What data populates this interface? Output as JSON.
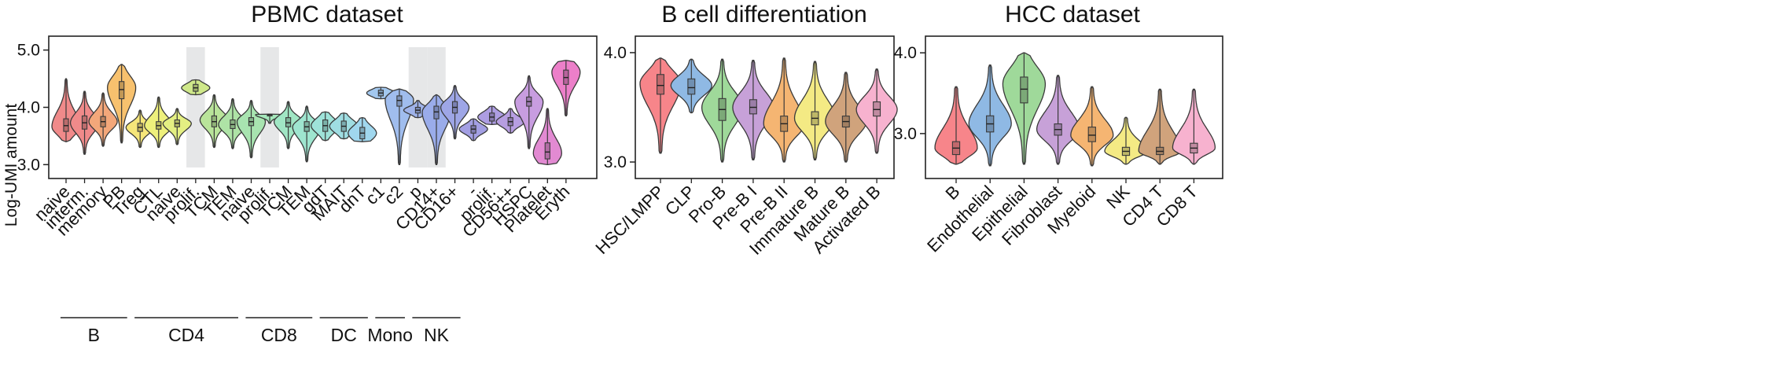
{
  "ylabel": "Log-UMI amount",
  "chart_data": [
    {
      "type": "violin",
      "title": "PBMC dataset",
      "ylabel": "Log-UMI amount",
      "yticks": [
        3.0,
        4.0,
        5.0
      ],
      "ylim": [
        2.95,
        5.05
      ],
      "shaded_categories": [
        "CD4 prolif.",
        "CD8 prolif.",
        "NK -",
        "NK prolif."
      ],
      "groups": [
        {
          "label": "B",
          "members": [
            "naive",
            "interm.",
            "memory",
            "PB"
          ]
        },
        {
          "label": "CD4",
          "members": [
            "Treg",
            "CTL",
            "naive",
            "prolif.",
            "TCM",
            "TEM"
          ]
        },
        {
          "label": "CD8",
          "members": [
            "naive",
            "prolif.",
            "TCM",
            "TEM"
          ]
        },
        {
          "label": "DC",
          "members": [
            "c1",
            "c2",
            "p"
          ]
        },
        {
          "label": "Mono",
          "members": [
            "CD14+",
            "CD16+"
          ]
        },
        {
          "label": "NK",
          "members": [
            "-",
            "prolif.",
            "CD56++"
          ]
        }
      ],
      "categories": [
        {
          "label": "naive",
          "median": 3.68,
          "q1": 3.58,
          "q3": 3.8,
          "min": 3.4,
          "max": 4.5,
          "mode": 3.66,
          "color": "#f08a8a"
        },
        {
          "label": "interm.",
          "median": 3.73,
          "q1": 3.62,
          "q3": 3.85,
          "min": 3.18,
          "max": 4.28,
          "mode": 3.73,
          "color": "#f08a8a"
        },
        {
          "label": "memory",
          "median": 3.75,
          "q1": 3.66,
          "q3": 3.84,
          "min": 3.32,
          "max": 4.25,
          "mode": 3.75,
          "color": "#f3a77a"
        },
        {
          "label": "PB",
          "median": 4.31,
          "q1": 4.15,
          "q3": 4.45,
          "min": 3.38,
          "max": 4.75,
          "mode": 4.35,
          "color": "#f7c16e"
        },
        {
          "label": "Treg",
          "median": 3.65,
          "q1": 3.58,
          "q3": 3.72,
          "min": 3.3,
          "max": 3.95,
          "mode": 3.65,
          "color": "#f6e67a"
        },
        {
          "label": "CTL",
          "median": 3.68,
          "q1": 3.62,
          "q3": 3.75,
          "min": 3.3,
          "max": 4.18,
          "mode": 3.68,
          "color": "#eef07c"
        },
        {
          "label": "naive",
          "median": 3.72,
          "q1": 3.66,
          "q3": 3.78,
          "min": 3.35,
          "max": 3.98,
          "mode": 3.72,
          "color": "#e4ef82"
        },
        {
          "label": "prolif.",
          "median": 4.34,
          "q1": 4.28,
          "q3": 4.4,
          "min": 4.22,
          "max": 4.48,
          "mode": 4.34,
          "color": "#cfe88a"
        },
        {
          "label": "TCM",
          "median": 3.75,
          "q1": 3.66,
          "q3": 3.85,
          "min": 3.3,
          "max": 4.22,
          "mode": 3.78,
          "color": "#b9e49a"
        },
        {
          "label": "TEM",
          "median": 3.7,
          "q1": 3.63,
          "q3": 3.78,
          "min": 3.28,
          "max": 4.15,
          "mode": 3.7,
          "color": "#aee3a6"
        },
        {
          "label": "naive",
          "median": 3.75,
          "q1": 3.68,
          "q3": 3.82,
          "min": 3.12,
          "max": 4.12,
          "mode": 3.75,
          "color": "#a8e4b0"
        },
        {
          "label": "prolif.",
          "median": 3.87,
          "q1": 3.85,
          "q3": 3.88,
          "min": 3.72,
          "max": 3.88,
          "mode": 3.87,
          "color": "#a4e6ba"
        },
        {
          "label": "TCM",
          "median": 3.73,
          "q1": 3.66,
          "q3": 3.82,
          "min": 3.28,
          "max": 4.1,
          "mode": 3.75,
          "color": "#a0e6c4"
        },
        {
          "label": "TEM",
          "median": 3.66,
          "q1": 3.58,
          "q3": 3.75,
          "min": 3.05,
          "max": 4.02,
          "mode": 3.66,
          "color": "#9ee5cf"
        },
        {
          "label": "gdT",
          "median": 3.68,
          "q1": 3.58,
          "q3": 3.78,
          "min": 3.42,
          "max": 3.92,
          "mode": 3.68,
          "color": "#9ee3d9"
        },
        {
          "label": "MAIT",
          "median": 3.67,
          "q1": 3.58,
          "q3": 3.76,
          "min": 3.45,
          "max": 3.9,
          "mode": 3.67,
          "color": "#9fdde2"
        },
        {
          "label": "dnT",
          "median": 3.55,
          "q1": 3.45,
          "q3": 3.65,
          "min": 3.4,
          "max": 3.82,
          "mode": 3.55,
          "color": "#a0d7ee"
        },
        {
          "label": "c1",
          "median": 4.25,
          "q1": 4.2,
          "q3": 4.3,
          "min": 4.15,
          "max": 4.35,
          "mode": 4.25,
          "color": "#a3c8ef"
        },
        {
          "label": "c2",
          "median": 4.12,
          "q1": 4.02,
          "q3": 4.2,
          "min": 3.0,
          "max": 4.32,
          "mode": 4.14,
          "color": "#a0bdee"
        },
        {
          "label": "p",
          "median": 3.95,
          "q1": 3.9,
          "q3": 4.0,
          "min": 3.82,
          "max": 4.12,
          "mode": 3.95,
          "color": "#9fb3ea"
        },
        {
          "label": "CD14+",
          "median": 3.92,
          "q1": 3.8,
          "q3": 4.02,
          "min": 3.0,
          "max": 4.22,
          "mode": 3.92,
          "color": "#9aacea"
        },
        {
          "label": "CD16+",
          "median": 4.0,
          "q1": 3.9,
          "q3": 4.1,
          "min": 3.45,
          "max": 4.38,
          "mode": 4.0,
          "color": "#9ea6e6"
        },
        {
          "label": "-",
          "median": 3.62,
          "q1": 3.55,
          "q3": 3.68,
          "min": 3.42,
          "max": 3.8,
          "mode": 3.62,
          "color": "#a39fe3"
        },
        {
          "label": "prolif.",
          "median": 3.83,
          "q1": 3.76,
          "q3": 3.9,
          "min": 3.7,
          "max": 4.02,
          "mode": 3.83,
          "color": "#ad9de2"
        },
        {
          "label": "CD56++",
          "median": 3.75,
          "q1": 3.68,
          "q3": 3.82,
          "min": 3.55,
          "max": 3.98,
          "mode": 3.75,
          "color": "#b79ee1"
        },
        {
          "label": "HSPC",
          "median": 4.1,
          "q1": 4.02,
          "q3": 4.18,
          "min": 3.28,
          "max": 4.55,
          "mode": 4.1,
          "color": "#c89de0"
        },
        {
          "label": "Platelet",
          "median": 3.22,
          "q1": 3.1,
          "q3": 3.38,
          "min": 3.0,
          "max": 3.98,
          "mode": 3.2,
          "color": "#e28ad2"
        },
        {
          "label": "Eryth",
          "median": 4.52,
          "q1": 4.4,
          "q3": 4.65,
          "min": 3.85,
          "max": 4.82,
          "mode": 4.62,
          "color": "#ec7fc9"
        }
      ]
    },
    {
      "type": "violin",
      "title": "B cell differentiation",
      "yticks": [
        3.0,
        4.0
      ],
      "ylim": [
        2.95,
        4.05
      ],
      "categories": [
        {
          "label": "HSC/LMPP",
          "median": 3.7,
          "q1": 3.62,
          "q3": 3.8,
          "min": 3.08,
          "max": 3.95,
          "mode": 3.72,
          "color": "#f7858a"
        },
        {
          "label": "CLP",
          "median": 3.68,
          "q1": 3.62,
          "q3": 3.76,
          "min": 3.45,
          "max": 3.94,
          "mode": 3.7,
          "color": "#8fb9e4"
        },
        {
          "label": "Pro-B",
          "median": 3.48,
          "q1": 3.38,
          "q3": 3.58,
          "min": 3.0,
          "max": 3.94,
          "mode": 3.5,
          "color": "#9fd99a"
        },
        {
          "label": "Pre-B I",
          "median": 3.5,
          "q1": 3.44,
          "q3": 3.57,
          "min": 3.02,
          "max": 3.93,
          "mode": 3.5,
          "color": "#c7a1d8"
        },
        {
          "label": "Pre-B II",
          "median": 3.35,
          "q1": 3.28,
          "q3": 3.42,
          "min": 3.0,
          "max": 3.95,
          "mode": 3.35,
          "color": "#f5b572"
        },
        {
          "label": "Immature B",
          "median": 3.4,
          "q1": 3.34,
          "q3": 3.46,
          "min": 3.02,
          "max": 3.92,
          "mode": 3.4,
          "color": "#f4ea84"
        },
        {
          "label": "Mature B",
          "median": 3.37,
          "q1": 3.32,
          "q3": 3.42,
          "min": 3.0,
          "max": 3.82,
          "mode": 3.37,
          "color": "#d0a37c"
        },
        {
          "label": "Activated B",
          "median": 3.48,
          "q1": 3.42,
          "q3": 3.55,
          "min": 3.08,
          "max": 3.85,
          "mode": 3.48,
          "color": "#f7b2cf"
        }
      ]
    },
    {
      "type": "violin",
      "title": "HCC dataset",
      "yticks": [
        3.0,
        4.0
      ],
      "ylim": [
        2.58,
        4.07
      ],
      "categories": [
        {
          "label": "B",
          "median": 2.82,
          "q1": 2.74,
          "q3": 2.9,
          "min": 2.62,
          "max": 3.58,
          "mode": 2.82,
          "color": "#f7858a"
        },
        {
          "label": "Endothelial",
          "median": 3.12,
          "q1": 3.02,
          "q3": 3.22,
          "min": 2.6,
          "max": 3.85,
          "mode": 3.12,
          "color": "#8fb9e4"
        },
        {
          "label": "Epithelial",
          "median": 3.55,
          "q1": 3.38,
          "q3": 3.7,
          "min": 2.62,
          "max": 4.0,
          "mode": 3.62,
          "color": "#9fd99a"
        },
        {
          "label": "Fibroblast",
          "median": 3.05,
          "q1": 2.98,
          "q3": 3.12,
          "min": 2.62,
          "max": 3.72,
          "mode": 3.05,
          "color": "#c7a1d8"
        },
        {
          "label": "Myeloid",
          "median": 2.98,
          "q1": 2.9,
          "q3": 3.08,
          "min": 2.6,
          "max": 3.58,
          "mode": 2.98,
          "color": "#f5b572"
        },
        {
          "label": "NK",
          "median": 2.78,
          "q1": 2.73,
          "q3": 2.83,
          "min": 2.62,
          "max": 3.2,
          "mode": 2.78,
          "color": "#f4ea84"
        },
        {
          "label": "CD4 T",
          "median": 2.78,
          "q1": 2.74,
          "q3": 2.83,
          "min": 2.62,
          "max": 3.55,
          "mode": 2.78,
          "color": "#d0a37c"
        },
        {
          "label": "CD8 T",
          "median": 2.82,
          "q1": 2.76,
          "q3": 2.88,
          "min": 2.62,
          "max": 3.55,
          "mode": 2.82,
          "color": "#f7b2cf"
        }
      ]
    }
  ]
}
